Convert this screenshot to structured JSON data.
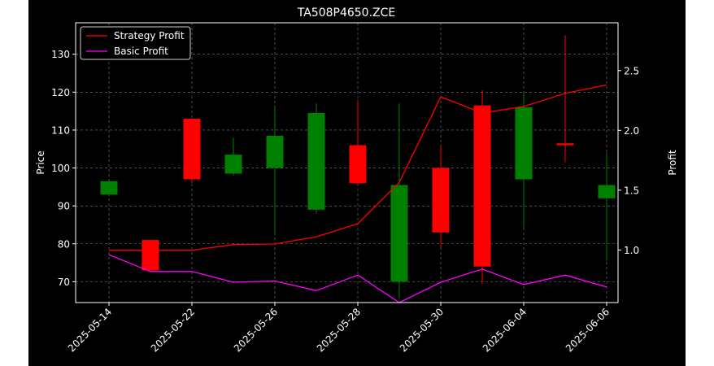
{
  "chart_data": {
    "type": "candlestick",
    "title": "TA508P4650.ZCE",
    "ylabel_left": "Price",
    "ylabel_right": "Profit",
    "ylim_left": [
      64.5,
      138.3
    ],
    "ylim_right": [
      0.56,
      2.9
    ],
    "yticks_left": [
      70,
      80,
      90,
      100,
      110,
      120,
      130
    ],
    "yticks_right": [
      1.0,
      1.5,
      2.0,
      2.5
    ],
    "ytick_labels_right": [
      "1.0",
      "1.5",
      "2.0",
      "2.5"
    ],
    "x_tick_labels": [
      "2025-05-14",
      "2025-05-22",
      "2025-05-26",
      "2025-05-28",
      "2025-05-30",
      "2025-06-04",
      "2025-06-06"
    ],
    "x_tick_positions": [
      0,
      2,
      4,
      6,
      8,
      10,
      12
    ],
    "grid": true,
    "legend_position": "top-left",
    "colors": {
      "background": "#000000",
      "up": "#008000",
      "down": "#ff0000",
      "strategy": "#ff0000",
      "basic": "#ff00ff",
      "text": "#ffffff",
      "grid": "#808080"
    },
    "candles": [
      {
        "i": 0,
        "open": 93,
        "high": 96.5,
        "low": 93,
        "close": 96.5
      },
      {
        "i": 1,
        "open": 81,
        "high": 81,
        "low": 73,
        "close": 73
      },
      {
        "i": 2,
        "open": 113,
        "high": 113,
        "low": 96,
        "close": 97
      },
      {
        "i": 3,
        "open": 98.5,
        "high": 108,
        "low": 98,
        "close": 103.5
      },
      {
        "i": 4,
        "open": 100,
        "high": 116,
        "low": 83,
        "close": 108.5
      },
      {
        "i": 5,
        "open": 89,
        "high": 117,
        "low": 88,
        "close": 114.5
      },
      {
        "i": 6,
        "open": 106,
        "high": 118,
        "low": 95.5,
        "close": 96
      },
      {
        "i": 7,
        "open": 70,
        "high": 117,
        "low": 65.5,
        "close": 95.5
      },
      {
        "i": 8,
        "open": 100,
        "high": 106,
        "low": 79,
        "close": 83
      },
      {
        "i": 9,
        "open": 116.5,
        "high": 120.5,
        "low": 69.5,
        "close": 74
      },
      {
        "i": 10,
        "open": 97,
        "high": 120,
        "low": 84,
        "close": 116
      },
      {
        "i": 11,
        "open": 106.5,
        "high": 135,
        "low": 101.5,
        "close": 106
      },
      {
        "i": 12,
        "open": 92,
        "high": 104,
        "low": 75.5,
        "close": 95.5
      }
    ],
    "series": [
      {
        "name": "Strategy Profit",
        "axis": "right",
        "x": [
          0,
          1,
          2,
          3,
          4,
          5,
          6,
          7,
          8,
          9,
          10,
          11,
          12
        ],
        "values": [
          0.997,
          0.997,
          0.997,
          1.045,
          1.05,
          1.11,
          1.22,
          1.565,
          2.28,
          2.145,
          2.2,
          2.31,
          2.38
        ]
      },
      {
        "name": "Basic Profit",
        "axis": "right",
        "x": [
          0,
          1,
          2,
          3,
          4,
          5,
          6,
          7,
          8,
          9,
          10,
          11,
          12
        ],
        "values": [
          0.96,
          0.82,
          0.82,
          0.73,
          0.74,
          0.66,
          0.79,
          0.56,
          0.73,
          0.84,
          0.71,
          0.79,
          0.69
        ]
      }
    ]
  }
}
